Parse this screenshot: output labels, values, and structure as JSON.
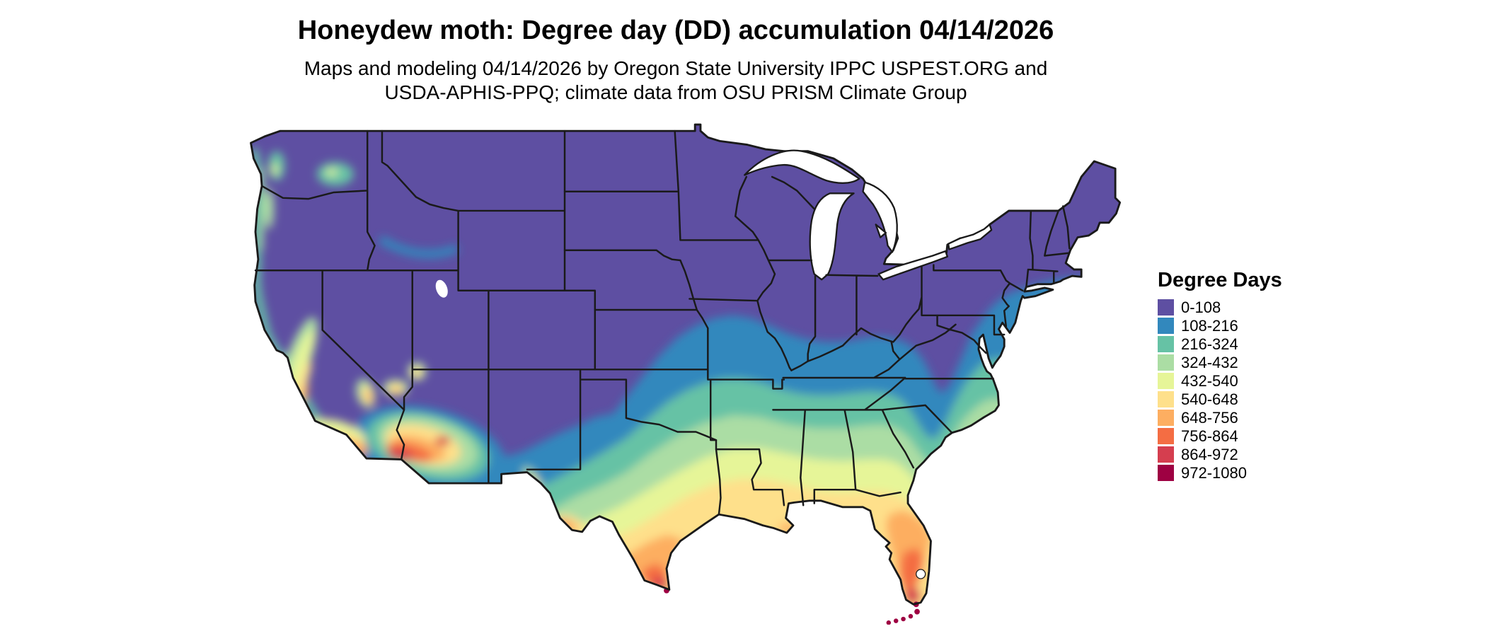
{
  "title": "Honeydew moth: Degree day (DD) accumulation 04/14/2026",
  "subtitle": {
    "line1": "Maps and modeling 04/14/2026 by Oregon State University IPPC USPEST.ORG and",
    "line2": "USDA-APHIS-PPQ; climate data from OSU PRISM Climate Group"
  },
  "legend": {
    "title": "Degree Days",
    "items": [
      {
        "label": "0-108",
        "color": "#5e4fa2"
      },
      {
        "label": "108-216",
        "color": "#3288bd"
      },
      {
        "label": "216-324",
        "color": "#66c2a5"
      },
      {
        "label": "324-432",
        "color": "#abdda4"
      },
      {
        "label": "432-540",
        "color": "#e6f598"
      },
      {
        "label": "540-648",
        "color": "#fee08b"
      },
      {
        "label": "648-756",
        "color": "#fdae61"
      },
      {
        "label": "756-864",
        "color": "#f46d43"
      },
      {
        "label": "864-972",
        "color": "#d53e4f"
      },
      {
        "label": "972-1080",
        "color": "#9e0142"
      }
    ]
  }
}
